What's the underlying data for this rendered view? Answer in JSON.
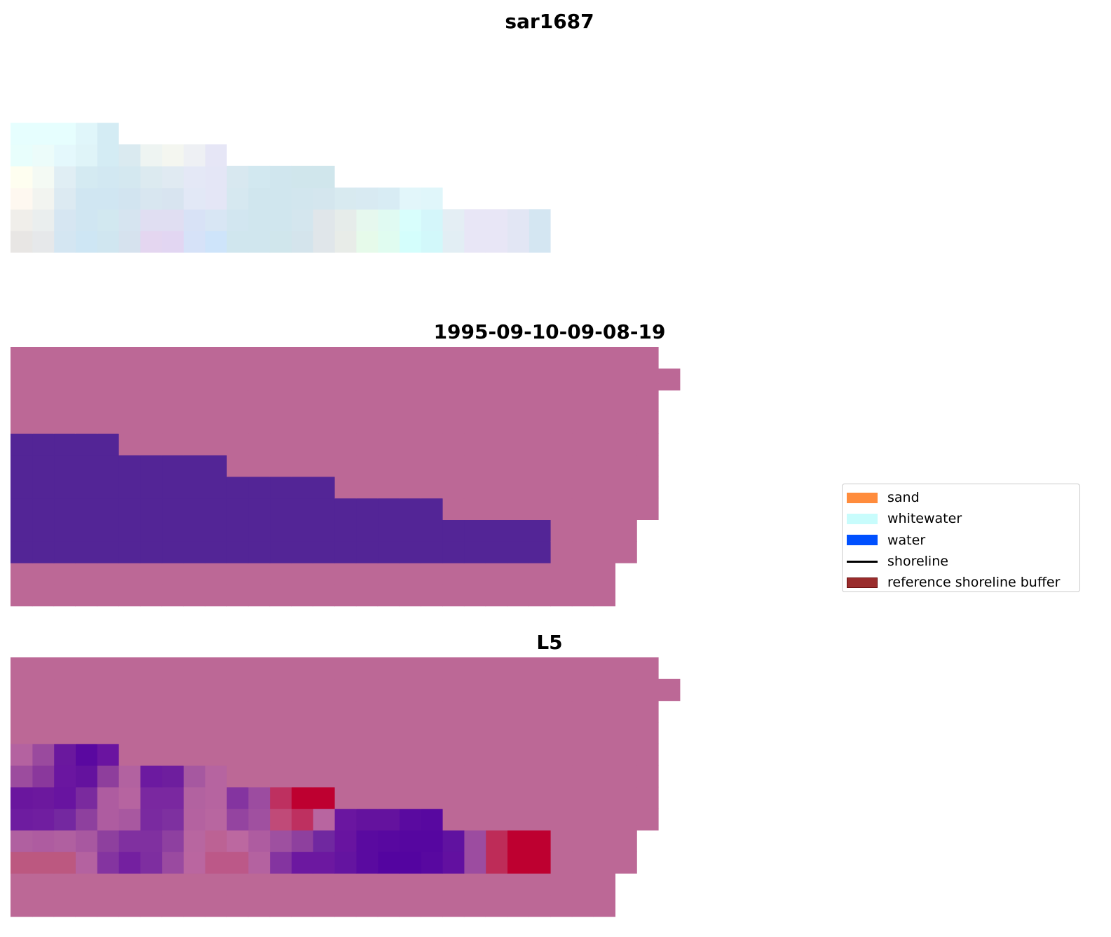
{
  "chart_data": {
    "type": "heatmap",
    "panels": [
      {
        "title": "sar1687",
        "rows": [
          [],
          [],
          [],
          [],
          [
            [
              "#E6FEFE",
              1
            ],
            [
              "#E6FEFE",
              1
            ],
            [
              "#E6FEFE",
              1
            ],
            [
              "#E0F6FA",
              1
            ],
            [
              "#D4ECF4",
              1
            ]
          ],
          [
            [
              "#E8FEFC",
              1
            ],
            [
              "#ECFCFA",
              1
            ],
            [
              "#E4F8FC",
              1
            ],
            [
              "#DFF4F8",
              1
            ],
            [
              "#D4ECF4",
              1
            ],
            [
              "#DAEAF0",
              1
            ],
            [
              "#EEF4F2",
              1
            ],
            [
              "#F4F6F0",
              1
            ],
            [
              "#EEF0F4",
              1
            ],
            [
              "#E6E6F6",
              1
            ]
          ],
          [
            [
              "#FEFEF0",
              1
            ],
            [
              "#F4FAF4",
              1
            ],
            [
              "#E0EEF4",
              1
            ],
            [
              "#D4EAF2",
              1
            ],
            [
              "#D2E8F2",
              1
            ],
            [
              "#D4E8F0",
              1
            ],
            [
              "#DCEAF0",
              1
            ],
            [
              "#E0EAF2",
              1
            ],
            [
              "#E4E8F6",
              1
            ],
            [
              "#E4E6F6",
              1
            ],
            [
              "#D8E8F0",
              1
            ],
            [
              "#D2E8F0",
              1
            ],
            [
              "#D0E6EE",
              1
            ],
            [
              "#D0E6EC",
              1
            ],
            [
              "#D0E6EC",
              1
            ]
          ],
          [
            [
              "#FEF8F0",
              1
            ],
            [
              "#F2F4F0",
              1
            ],
            [
              "#DCEAF2",
              1
            ],
            [
              "#D0E6F2",
              1
            ],
            [
              "#D0E6F2",
              1
            ],
            [
              "#D2E4F0",
              1
            ],
            [
              "#D8E6F0",
              1
            ],
            [
              "#D8E4F0",
              1
            ],
            [
              "#E2E8F6",
              1
            ],
            [
              "#E4E6F6",
              1
            ],
            [
              "#D6E8F0",
              1
            ],
            [
              "#D0E6EE",
              1
            ],
            [
              "#D0E6EE",
              1
            ],
            [
              "#D2E6EE",
              1
            ],
            [
              "#D4E6EE",
              1
            ],
            [
              "#D8EAF0",
              1
            ],
            [
              "#D8EAF2",
              1
            ],
            [
              "#D8ECF4",
              1
            ],
            [
              "#E2F6FA",
              1
            ],
            [
              "#E0F6FA",
              1
            ]
          ],
          [
            [
              "#F0EEEA",
              1
            ],
            [
              "#EAEEEE",
              1
            ],
            [
              "#D6E6F2",
              1
            ],
            [
              "#D0E6F2",
              1
            ],
            [
              "#D2E8F0",
              1
            ],
            [
              "#D6E4F0",
              1
            ],
            [
              "#E0DEF2",
              1
            ],
            [
              "#E0DEF2",
              1
            ],
            [
              "#D8E2F6",
              1
            ],
            [
              "#D8E6F4",
              1
            ],
            [
              "#D2E6F0",
              1
            ],
            [
              "#D0E6EE",
              1
            ],
            [
              "#D0E6EE",
              1
            ],
            [
              "#D4E6EE",
              1
            ],
            [
              "#E0E6EA",
              1
            ],
            [
              "#E6ECEA",
              1
            ],
            [
              "#E6F8EE",
              1
            ],
            [
              "#E0FAF2",
              1
            ],
            [
              "#D8FEFC",
              1
            ],
            [
              "#D4F6FA",
              1
            ],
            [
              "#E4EEF4",
              1
            ],
            [
              "#E8E6F6",
              1
            ],
            [
              "#E8E6F6",
              1
            ],
            [
              "#E2E6F4",
              1
            ],
            [
              "#D4E6F2",
              1
            ]
          ],
          [
            [
              "#E8E6E4",
              1
            ],
            [
              "#E6E8EA",
              1
            ],
            [
              "#D4E6F2",
              1
            ],
            [
              "#CEE6F4",
              1
            ],
            [
              "#D0E6F0",
              1
            ],
            [
              "#D6E2EE",
              1
            ],
            [
              "#E4D6F0",
              1
            ],
            [
              "#E2D6F2",
              1
            ],
            [
              "#D6E2F8",
              1
            ],
            [
              "#CEE4FA",
              1
            ],
            [
              "#D0E6EE",
              1
            ],
            [
              "#D0E6EE",
              1
            ],
            [
              "#D0E6EC",
              1
            ],
            [
              "#D4E4EC",
              1
            ],
            [
              "#E0E6EA",
              1
            ],
            [
              "#E8ECE8",
              1
            ],
            [
              "#E6FAEA",
              1
            ],
            [
              "#E0FCF0",
              1
            ],
            [
              "#D4FEFC",
              1
            ],
            [
              "#D2F8FA",
              1
            ],
            [
              "#E2EEF4",
              1
            ],
            [
              "#E8E6F6",
              1
            ],
            [
              "#E8E6F6",
              1
            ],
            [
              "#E2E6F4",
              1
            ],
            [
              "#D4E6F2",
              1
            ]
          ],
          [],
          []
        ]
      },
      {
        "title": "1995-09-10-09-08-19",
        "rows": [
          [
            [
              "#BC6896",
              30
            ]
          ],
          [
            [
              "#BC6896",
              31
            ]
          ],
          [
            [
              "#BC6896",
              30
            ]
          ],
          [
            [
              "#BC6896",
              30
            ]
          ],
          [
            [
              "#532596",
              5
            ],
            [
              "#BC6896",
              25
            ]
          ],
          [
            [
              "#532596",
              10
            ],
            [
              "#BC6896",
              20
            ]
          ],
          [
            [
              "#532596",
              15
            ],
            [
              "#BC6896",
              15
            ]
          ],
          [
            [
              "#532596",
              20
            ],
            [
              "#BC6896",
              10
            ]
          ],
          [
            [
              "#532596",
              25
            ],
            [
              "#BC6896",
              4
            ]
          ],
          [
            [
              "#532596",
              25
            ],
            [
              "#BC6896",
              4
            ]
          ],
          [
            [
              "#BC6896",
              28
            ]
          ],
          [
            [
              "#BC6896",
              28
            ]
          ]
        ]
      },
      {
        "title": "L5",
        "rows": [
          [
            [
              "#BC6896",
              30
            ]
          ],
          [
            [
              "#BC6896",
              31
            ]
          ],
          [
            [
              "#BC6896",
              30
            ]
          ],
          [
            [
              "#BC6896",
              30
            ]
          ],
          [
            [
              "#B462A0",
              1
            ],
            [
              "#9A4A9E",
              1
            ],
            [
              "#6A189E",
              1
            ],
            [
              "#5A08A0",
              1
            ],
            [
              "#6A14A0",
              1
            ],
            [
              "#BC6896",
              25
            ]
          ],
          [
            [
              "#9C4C9E",
              1
            ],
            [
              "#8A389C",
              1
            ],
            [
              "#6A16A0",
              1
            ],
            [
              "#64129E",
              1
            ],
            [
              "#8E3E9C",
              1
            ],
            [
              "#B262A0",
              1
            ],
            [
              "#6C1AA0",
              1
            ],
            [
              "#6E1E9E",
              1
            ],
            [
              "#A658A0",
              1
            ],
            [
              "#B664A0",
              1
            ],
            [
              "#BC6896",
              20
            ]
          ],
          [
            [
              "#6A169E",
              1
            ],
            [
              "#6C189E",
              1
            ],
            [
              "#6814A0",
              1
            ],
            [
              "#7A2A9E",
              1
            ],
            [
              "#AE5CA0",
              1
            ],
            [
              "#B664A0",
              1
            ],
            [
              "#7A28A0",
              1
            ],
            [
              "#7A28A0",
              1
            ],
            [
              "#B262A0",
              1
            ],
            [
              "#B664A0",
              1
            ],
            [
              "#8434A0",
              1
            ],
            [
              "#9C4CA0",
              1
            ],
            [
              "#BE3060",
              1
            ],
            [
              "#BE0030",
              1
            ],
            [
              "#BE0030",
              1
            ],
            [
              "#BC6896",
              15
            ]
          ],
          [
            [
              "#6E1CA0",
              1
            ],
            [
              "#701EA0",
              1
            ],
            [
              "#7428A0",
              1
            ],
            [
              "#8E409E",
              1
            ],
            [
              "#AE5CA0",
              1
            ],
            [
              "#A858A0",
              1
            ],
            [
              "#7A2AA0",
              1
            ],
            [
              "#7E30A0",
              1
            ],
            [
              "#B462A0",
              1
            ],
            [
              "#B866A0",
              1
            ],
            [
              "#9444A0",
              1
            ],
            [
              "#A050A0",
              1
            ],
            [
              "#C04A78",
              1
            ],
            [
              "#BE3060",
              1
            ],
            [
              "#B865A0",
              1
            ],
            [
              "#6A16A0",
              1
            ],
            [
              "#64129E",
              1
            ],
            [
              "#64129E",
              1
            ],
            [
              "#5A0AA0",
              1
            ],
            [
              "#5808A0",
              1
            ],
            [
              "#BC6896",
              10
            ]
          ],
          [
            [
              "#B060A0",
              1
            ],
            [
              "#AE5CA0",
              1
            ],
            [
              "#B060A0",
              1
            ],
            [
              "#A858A0",
              1
            ],
            [
              "#8E409E",
              1
            ],
            [
              "#8030A0",
              1
            ],
            [
              "#8030A0",
              1
            ],
            [
              "#8E40A0",
              1
            ],
            [
              "#B866A0",
              1
            ],
            [
              "#BC6294",
              1
            ],
            [
              "#BC68A0",
              1
            ],
            [
              "#AE5CA0",
              1
            ],
            [
              "#9E50A0",
              1
            ],
            [
              "#8E409E",
              1
            ],
            [
              "#7028A0",
              1
            ],
            [
              "#6814A0",
              1
            ],
            [
              "#5A0AA0",
              1
            ],
            [
              "#5808A0",
              1
            ],
            [
              "#5606A0",
              1
            ],
            [
              "#5606A0",
              1
            ],
            [
              "#6012A0",
              1
            ],
            [
              "#9C4CA0",
              1
            ],
            [
              "#BE2C58",
              1
            ],
            [
              "#BE0030",
              1
            ],
            [
              "#BE0030",
              1
            ],
            [
              "#BC6896",
              4
            ]
          ],
          [
            [
              "#BC5880",
              1
            ],
            [
              "#BC5880",
              1
            ],
            [
              "#BC5880",
              1
            ],
            [
              "#B462A0",
              1
            ],
            [
              "#8434A0",
              1
            ],
            [
              "#7420A0",
              1
            ],
            [
              "#7E2EA0",
              1
            ],
            [
              "#9A4AA0",
              1
            ],
            [
              "#BA66A0",
              1
            ],
            [
              "#BC5888",
              1
            ],
            [
              "#BC5888",
              1
            ],
            [
              "#B462A0",
              1
            ],
            [
              "#8434A0",
              1
            ],
            [
              "#6C18A0",
              1
            ],
            [
              "#6C18A0",
              1
            ],
            [
              "#6414A0",
              1
            ],
            [
              "#5A0AA0",
              1
            ],
            [
              "#5404A0",
              1
            ],
            [
              "#5404A0",
              1
            ],
            [
              "#5808A0",
              1
            ],
            [
              "#6210A0",
              1
            ],
            [
              "#9C4CA0",
              1
            ],
            [
              "#BE2C58",
              1
            ],
            [
              "#BE0030",
              1
            ],
            [
              "#BE0030",
              1
            ],
            [
              "#BC6896",
              4
            ]
          ],
          [
            [
              "#BC6896",
              28
            ]
          ],
          [
            [
              "#BC6896",
              28
            ]
          ]
        ]
      }
    ],
    "legend": {
      "placement": "center-right",
      "items": [
        {
          "label": "sand",
          "color": "#FF8C3C",
          "kind": "patch"
        },
        {
          "label": "whitewater",
          "color": "#C8FCFC",
          "kind": "patch"
        },
        {
          "label": "water",
          "color": "#0050FF",
          "kind": "patch"
        },
        {
          "label": "shoreline",
          "color": "#000000",
          "kind": "line"
        },
        {
          "label": "reference shoreline buffer",
          "color": "#9A2C2C",
          "kind": "patch"
        }
      ]
    }
  }
}
